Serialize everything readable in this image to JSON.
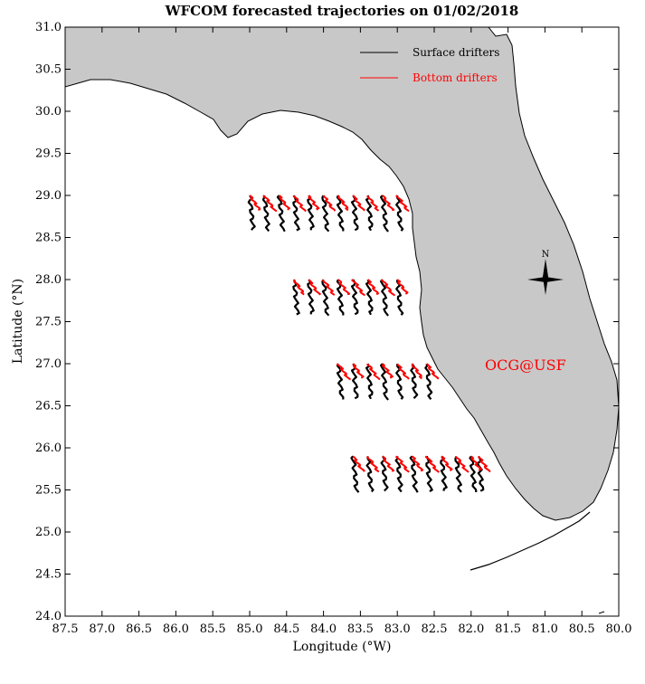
{
  "title": "WFCOM forecasted trajectories on 01/02/2018",
  "xlabel": "Longitude (°W)",
  "ylabel": "Latitude (°N)",
  "credit": "OCG@USF",
  "compass_label": "N",
  "colors": {
    "land": "#c8c8c8",
    "coast": "#000000",
    "surface": "#000000",
    "bottom": "#ff0000",
    "water": "#ffffff"
  },
  "legend": [
    {
      "label": "Surface drifters",
      "color": "#000000"
    },
    {
      "label": "Bottom drifters",
      "color": "#ff0000"
    }
  ],
  "chart_data": {
    "type": "map",
    "xlim": [
      87.5,
      80.0
    ],
    "ylim": [
      24.0,
      31.0
    ],
    "x_ticks": [
      "87.5",
      "87.0",
      "86.5",
      "86.0",
      "85.5",
      "85.0",
      "84.5",
      "84.0",
      "83.5",
      "83.0",
      "82.5",
      "82.0",
      "81.5",
      "81.0",
      "80.5",
      "80.0"
    ],
    "y_ticks": [
      "31.0",
      "30.5",
      "30.0",
      "29.5",
      "29.0",
      "28.5",
      "28.0",
      "27.5",
      "27.0",
      "26.5",
      "26.0",
      "25.5",
      "25.0",
      "24.5",
      "24.0"
    ],
    "series": [
      {
        "name": "Surface drifters",
        "release_rows": [
          {
            "lat": 29.0,
            "lons": [
              85.0,
              84.8,
              84.6,
              84.4,
              84.2,
              84.0,
              83.8,
              83.6,
              83.4,
              83.2,
              83.0
            ]
          },
          {
            "lat": 28.0,
            "lons": [
              84.4,
              84.2,
              84.0,
              83.8,
              83.6,
              83.4,
              83.2,
              83.0
            ]
          },
          {
            "lat": 27.0,
            "lons": [
              83.8,
              83.6,
              83.4,
              83.2,
              83.0,
              82.8,
              82.6
            ]
          },
          {
            "lat": 25.9,
            "lons": [
              83.6,
              83.4,
              83.2,
              83.0,
              82.8,
              82.6,
              82.4,
              82.2,
              82.0,
              81.9
            ]
          }
        ]
      },
      {
        "name": "Bottom drifters",
        "release_rows": [
          {
            "lat": 29.0,
            "lons": [
              85.0,
              84.8,
              84.6,
              84.4,
              84.2,
              84.0,
              83.8,
              83.6,
              83.4,
              83.2,
              83.0
            ]
          },
          {
            "lat": 28.0,
            "lons": [
              84.4,
              84.2,
              84.0,
              83.8,
              83.6,
              83.4,
              83.2,
              83.0
            ]
          },
          {
            "lat": 27.0,
            "lons": [
              83.8,
              83.6,
              83.4,
              83.2,
              83.0,
              82.8,
              82.6
            ]
          },
          {
            "lat": 25.9,
            "lons": [
              83.6,
              83.4,
              83.2,
              83.0,
              82.8,
              82.6,
              82.4,
              82.2,
              82.0,
              81.9
            ]
          }
        ]
      }
    ]
  }
}
